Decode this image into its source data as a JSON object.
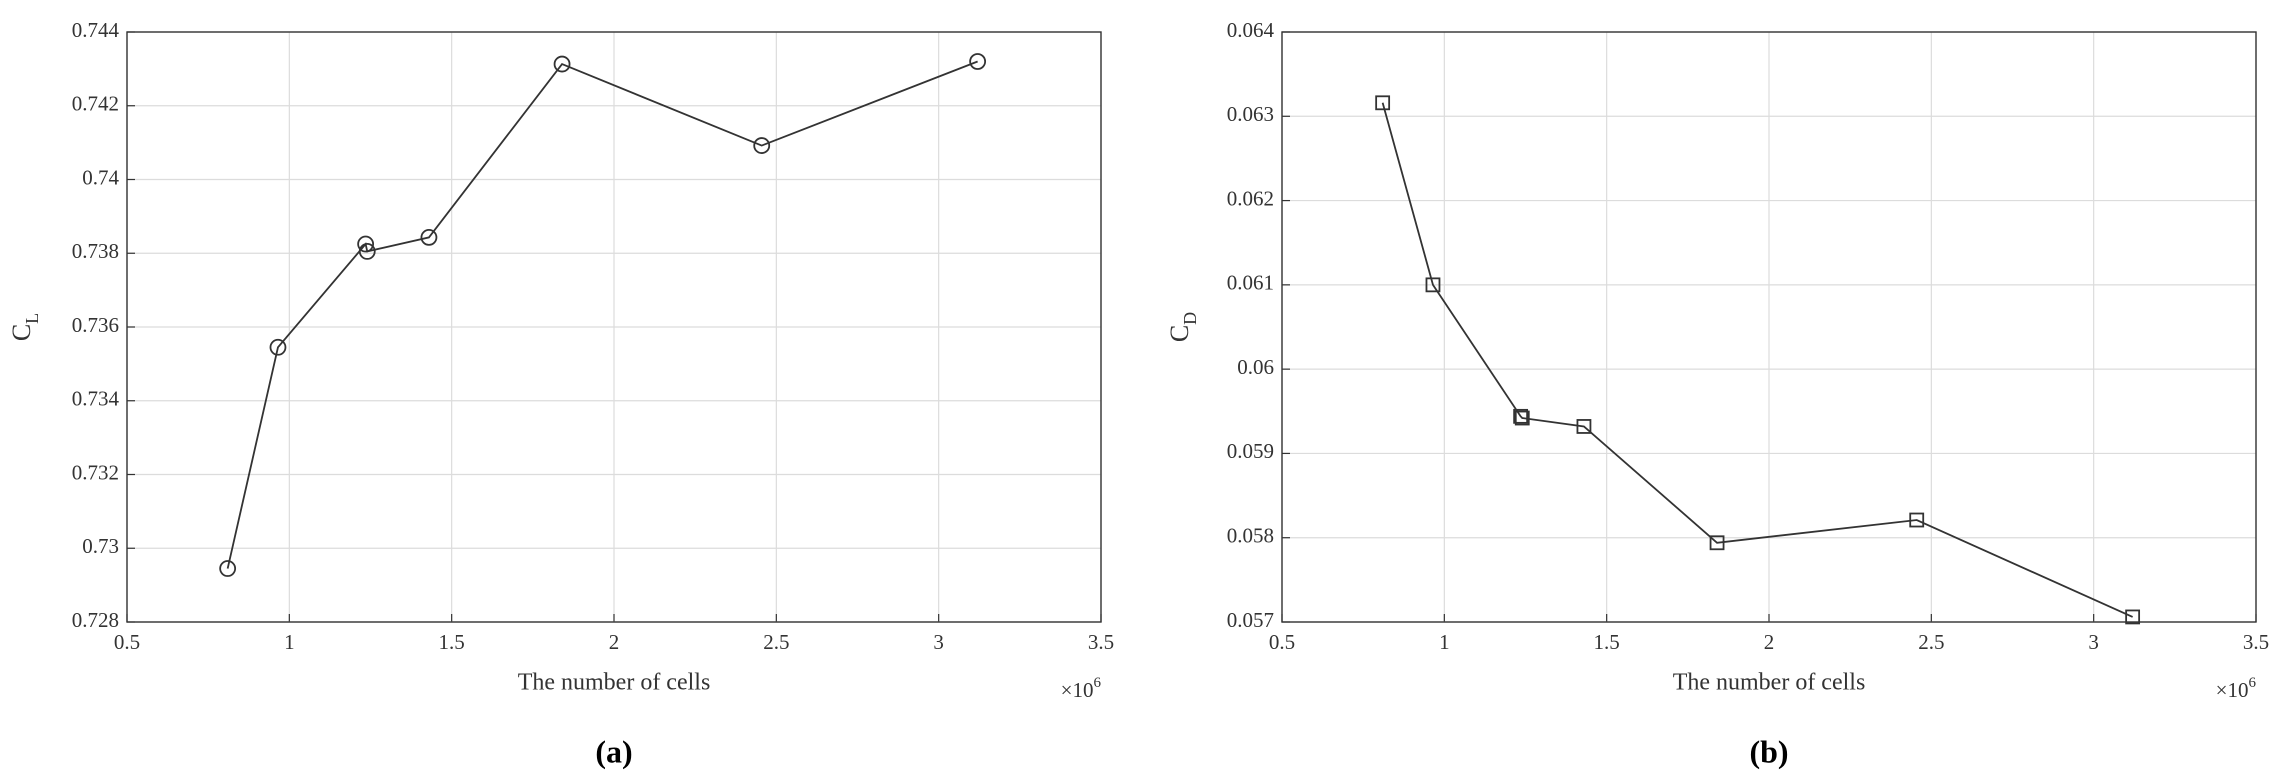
{
  "chart_data": [
    {
      "type": "line",
      "caption": "(a)",
      "xlabel": "The number of cells",
      "xscale_base": "×10",
      "xscale_exponent": "6",
      "ylabel": "C",
      "ylabel_subscript": "L",
      "marker": "circle",
      "color": "#333333",
      "grid": true,
      "x": [
        0.81,
        0.965,
        1.235,
        1.24,
        1.43,
        1.84,
        2.455,
        3.12
      ],
      "series": [
        {
          "name": "C_L",
          "color": "#333333",
          "values": [
            0.72945,
            0.73545,
            0.73825,
            0.73805,
            0.73843,
            0.74313,
            0.74092,
            0.7432
          ]
        }
      ],
      "xlim": [
        0.5,
        3.5
      ],
      "xticks": [
        0.5,
        1,
        1.5,
        2,
        2.5,
        3,
        3.5
      ],
      "ylim": [
        0.728,
        0.744
      ],
      "yticks": [
        0.728,
        0.73,
        0.732,
        0.734,
        0.736,
        0.738,
        0.74,
        0.742,
        0.744
      ]
    },
    {
      "type": "line",
      "caption": "(b)",
      "xlabel": "The number of cells",
      "xscale_base": "×10",
      "xscale_exponent": "6",
      "ylabel": "C",
      "ylabel_subscript": "D",
      "marker": "square",
      "color": "#333333",
      "grid": true,
      "x": [
        0.81,
        0.965,
        1.235,
        1.24,
        1.43,
        1.84,
        2.455,
        3.12
      ],
      "series": [
        {
          "name": "C_D",
          "color": "#333333",
          "values": [
            0.06316,
            0.061,
            0.05944,
            0.05942,
            0.05932,
            0.05794,
            0.05821,
            0.05706
          ]
        }
      ],
      "xlim": [
        0.5,
        3.5
      ],
      "xticks": [
        0.5,
        1,
        1.5,
        2,
        2.5,
        3,
        3.5
      ],
      "ylim": [
        0.057,
        0.064
      ],
      "yticks": [
        0.057,
        0.058,
        0.059,
        0.06,
        0.061,
        0.062,
        0.063,
        0.064
      ]
    }
  ]
}
